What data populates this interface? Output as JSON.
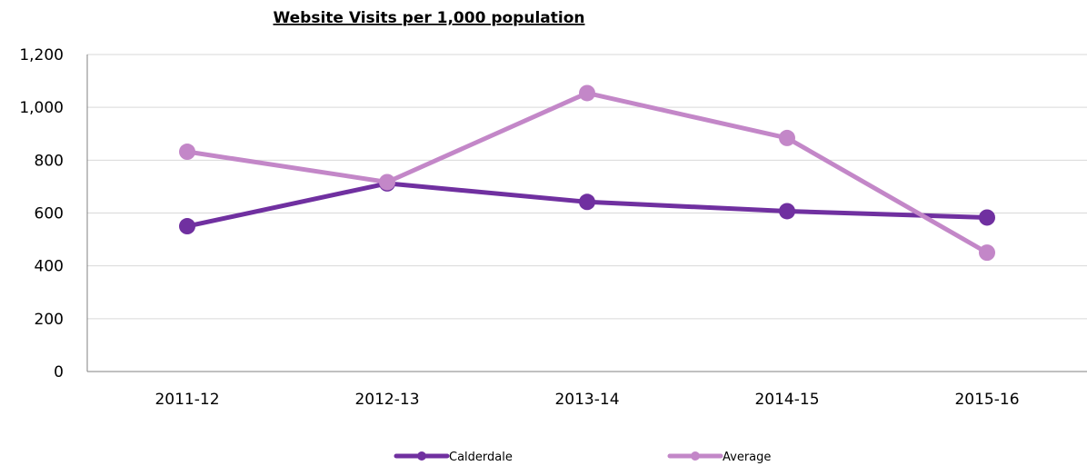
{
  "chart_data": {
    "type": "line",
    "title": "Website Visits per 1,000 population",
    "categories": [
      "2011-12",
      "2012-13",
      "2013-14",
      "2014-15",
      "2015-16"
    ],
    "series": [
      {
        "name": "Calderdale",
        "color": "#7030a0",
        "values": [
          550,
          712,
          642,
          607,
          583
        ]
      },
      {
        "name": "Average",
        "color": "#c387c8",
        "values": [
          832,
          717,
          1054,
          884,
          450
        ]
      }
    ],
    "y_ticks": [
      "0",
      "200",
      "400",
      "600",
      "800",
      "1,000",
      "1,200"
    ],
    "ylim": [
      0,
      1200
    ],
    "xlabel": "",
    "ylabel": "",
    "grid": true,
    "legend_position": "bottom"
  }
}
